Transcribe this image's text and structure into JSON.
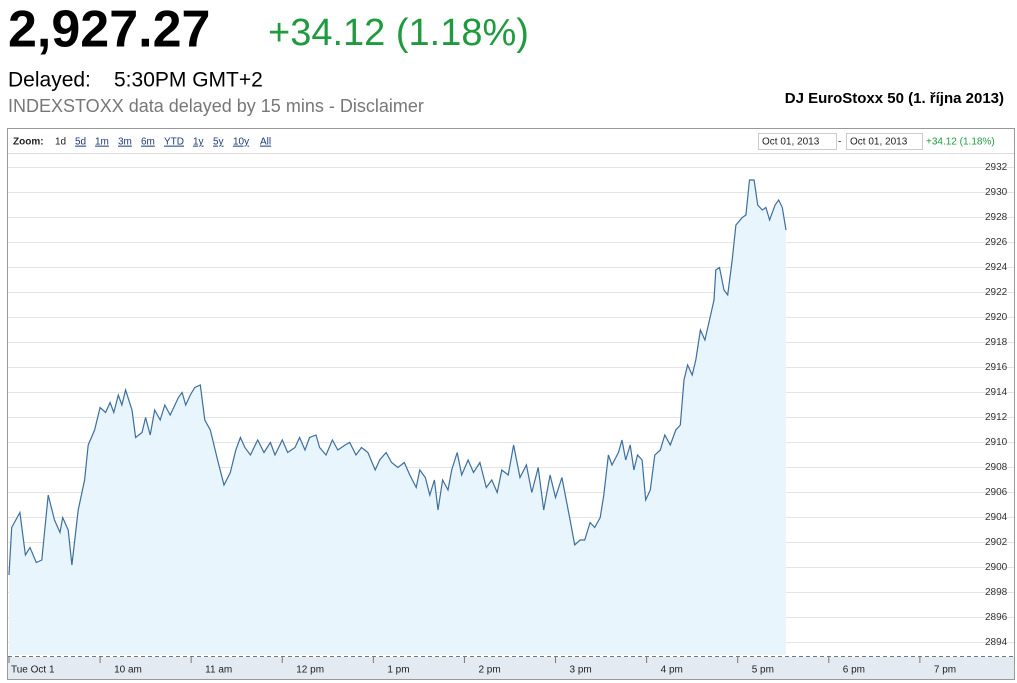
{
  "header": {
    "price": "2,927.27",
    "change": "+34.12 (1.18%)",
    "delayed_label": "Delayed:",
    "delayed_time": "5:30PM GMT+2",
    "source": "INDEXSTOXX data delayed by 15 mins - Disclaimer"
  },
  "toolbar": {
    "zoom_label": "Zoom:",
    "zoom_options": [
      "1d",
      "5d",
      "1m",
      "3m",
      "6m",
      "YTD",
      "1y",
      "5y",
      "10y",
      "All"
    ],
    "date_from": "Oct 01, 2013",
    "separator": "-",
    "date_to": "Oct 01, 2013",
    "change": "+34.12 (1.18%)"
  },
  "chart_data": {
    "type": "line",
    "title": "DJ EuroStoxx 50 (1. října 2013)",
    "x": [
      9.0,
      9.03,
      9.12,
      9.18,
      9.23,
      9.3,
      9.36,
      9.43,
      9.5,
      9.56,
      9.59,
      9.65,
      9.69,
      9.76,
      9.83,
      9.87,
      9.94,
      10.0,
      10.06,
      10.11,
      10.15,
      10.2,
      10.24,
      10.28,
      10.35,
      10.39,
      10.46,
      10.5,
      10.55,
      10.6,
      10.66,
      10.71,
      10.77,
      10.86,
      10.9,
      10.94,
      10.99,
      11.04,
      11.1,
      11.15,
      11.21,
      11.29,
      11.36,
      11.43,
      11.49,
      11.54,
      11.59,
      11.65,
      11.73,
      11.8,
      11.87,
      11.92,
      12.0,
      12.06,
      12.14,
      12.19,
      12.25,
      12.3,
      12.37,
      12.41,
      12.48,
      12.55,
      12.61,
      12.69,
      12.74,
      12.81,
      12.87,
      12.94,
      13.02,
      13.07,
      13.14,
      13.2,
      13.27,
      13.34,
      13.4,
      13.47,
      13.51,
      13.57,
      13.62,
      13.67,
      13.71,
      13.76,
      13.82,
      13.86,
      13.92,
      13.97,
      14.04,
      14.1,
      14.17,
      14.24,
      14.3,
      14.36,
      14.41,
      14.48,
      14.54,
      14.61,
      14.68,
      14.74,
      14.81,
      14.87,
      14.94,
      15.0,
      15.07,
      15.16,
      15.21,
      15.27,
      15.32,
      15.38,
      15.43,
      15.49,
      15.53,
      15.58,
      15.62,
      15.69,
      15.73,
      15.77,
      15.82,
      15.86,
      15.9,
      15.95,
      15.99,
      16.04,
      16.09,
      16.15,
      16.2,
      16.26,
      16.32,
      16.37,
      16.41,
      16.45,
      16.5,
      16.54,
      16.59,
      16.64,
      16.69,
      16.74,
      16.76,
      16.8,
      16.85,
      16.89,
      16.94,
      16.98,
      17.05,
      17.09,
      17.13,
      17.18,
      17.22,
      17.27,
      17.31,
      17.35,
      17.41,
      17.45,
      17.49,
      17.53
    ],
    "series": [
      {
        "color": "#3d6f9e",
        "fill": "#e9f5fd",
        "values": [
          2899.4,
          2903.2,
          2904.4,
          2901.0,
          2901.6,
          2900.4,
          2900.6,
          2905.8,
          2903.8,
          2902.8,
          2904.0,
          2903.0,
          2900.2,
          2904.6,
          2907.0,
          2909.8,
          2911.0,
          2912.8,
          2912.4,
          2913.2,
          2912.4,
          2913.8,
          2913.0,
          2914.2,
          2912.6,
          2910.4,
          2910.8,
          2912.0,
          2910.6,
          2912.6,
          2911.8,
          2913.0,
          2912.2,
          2913.6,
          2914.0,
          2913.0,
          2913.8,
          2914.4,
          2914.6,
          2911.8,
          2911.0,
          2908.6,
          2906.6,
          2907.6,
          2909.4,
          2910.4,
          2909.6,
          2909.0,
          2910.2,
          2909.2,
          2910.0,
          2909.0,
          2910.2,
          2909.2,
          2909.6,
          2910.4,
          2909.4,
          2910.4,
          2910.6,
          2909.6,
          2909.0,
          2910.2,
          2909.4,
          2909.8,
          2910.0,
          2909.0,
          2909.6,
          2909.2,
          2907.8,
          2908.6,
          2909.2,
          2908.4,
          2908.0,
          2908.4,
          2907.4,
          2906.4,
          2907.8,
          2907.2,
          2905.8,
          2907.0,
          2904.6,
          2907.0,
          2906.2,
          2907.8,
          2909.2,
          2907.4,
          2908.6,
          2907.6,
          2908.4,
          2906.4,
          2907.0,
          2906.0,
          2907.8,
          2907.4,
          2909.8,
          2907.2,
          2908.2,
          2906.0,
          2908.0,
          2904.6,
          2907.4,
          2905.6,
          2907.2,
          2903.8,
          2901.8,
          2902.2,
          2902.2,
          2903.6,
          2903.2,
          2904.0,
          2905.8,
          2909.0,
          2908.2,
          2909.2,
          2910.2,
          2908.6,
          2909.8,
          2907.8,
          2909.0,
          2908.6,
          2905.4,
          2906.2,
          2909.0,
          2909.4,
          2910.6,
          2909.8,
          2911.0,
          2911.4,
          2915.0,
          2916.2,
          2915.4,
          2916.6,
          2919.0,
          2918.2,
          2919.8,
          2921.4,
          2923.8,
          2924.0,
          2922.2,
          2921.8,
          2924.6,
          2927.4,
          2928.0,
          2928.2,
          2931.0,
          2931.0,
          2929.0,
          2928.6,
          2928.8,
          2927.8,
          2929.0,
          2929.4,
          2928.8,
          2927.0
        ]
      }
    ],
    "xlim": [
      9,
      19.66
    ],
    "xticks": [
      {
        "value": 9,
        "label": "Tue Oct 1"
      },
      {
        "value": 10,
        "label": "10 am"
      },
      {
        "value": 11,
        "label": "11 am"
      },
      {
        "value": 12,
        "label": "12 pm"
      },
      {
        "value": 13,
        "label": "1 pm"
      },
      {
        "value": 14,
        "label": "2 pm"
      },
      {
        "value": 15,
        "label": "3 pm"
      },
      {
        "value": 16,
        "label": "4 pm"
      },
      {
        "value": 17,
        "label": "5 pm"
      },
      {
        "value": 18,
        "label": "6 pm"
      },
      {
        "value": 19,
        "label": "7 pm"
      }
    ],
    "ylim": [
      2893,
      2933
    ],
    "yticks": [
      2894,
      2896,
      2898,
      2900,
      2902,
      2904,
      2906,
      2908,
      2910,
      2912,
      2914,
      2916,
      2918,
      2920,
      2922,
      2924,
      2926,
      2928,
      2930,
      2932
    ],
    "grid": true
  }
}
